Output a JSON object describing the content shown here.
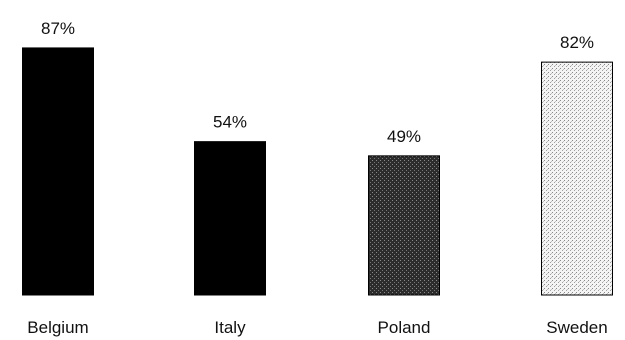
{
  "chart_data": {
    "type": "bar",
    "title": "",
    "xlabel": "",
    "ylabel": "",
    "ylim": [
      0,
      100
    ],
    "grid": false,
    "legend": "none",
    "categories": [
      "Belgium",
      "Italy",
      "Poland",
      "Sweden"
    ],
    "values": [
      87,
      54,
      49,
      82
    ],
    "value_labels": [
      "87%",
      "54%",
      "49%",
      "82%"
    ],
    "bar_fills": [
      "solid-black",
      "solid-black",
      "dark-stipple",
      "light-stipple"
    ],
    "colors": {
      "solid": "#000000",
      "dark_stipple_base": "#2c2c2c",
      "light_stipple_base": "#f4f4f4",
      "text": "#111111"
    }
  }
}
